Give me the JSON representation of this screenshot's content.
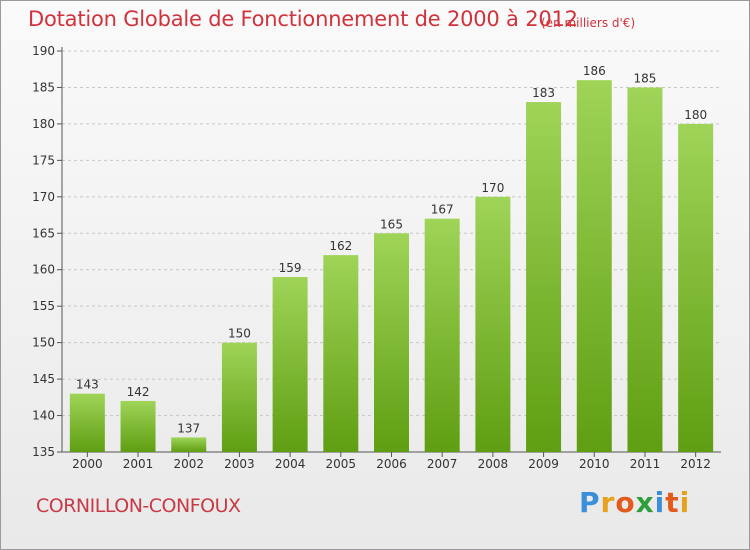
{
  "header": {
    "title": "Dotation Globale de Fonctionnement de 2000 à 2012",
    "subtitle": "(en milliers d'€)"
  },
  "footer": {
    "commune": "CORNILLON-CONFOUX",
    "logo_text": "Proxiti",
    "logo_colors": [
      "#3a8fd8",
      "#e6a21c",
      "#e25a1c",
      "#2f9f3c",
      "#3a8fd8",
      "#e25a1c",
      "#e6a21c"
    ]
  },
  "colors": {
    "bar_top": "#9fd458",
    "bar_bottom": "#5f9e12",
    "grid": "#c8c8c8",
    "axis": "#555555"
  },
  "chart_data": {
    "type": "bar",
    "title": "Dotation Globale de Fonctionnement de 2000 à 2012",
    "subtitle": "(en milliers d'€)",
    "categories": [
      "2000",
      "2001",
      "2002",
      "2003",
      "2004",
      "2005",
      "2006",
      "2007",
      "2008",
      "2009",
      "2010",
      "2011",
      "2012"
    ],
    "values": [
      143,
      142,
      137,
      150,
      159,
      162,
      165,
      167,
      170,
      183,
      186,
      185,
      180
    ],
    "ylim": [
      135,
      190
    ],
    "yticks": [
      135,
      140,
      145,
      150,
      155,
      160,
      165,
      170,
      175,
      180,
      185,
      190
    ],
    "grid": true,
    "data_labels": true
  }
}
